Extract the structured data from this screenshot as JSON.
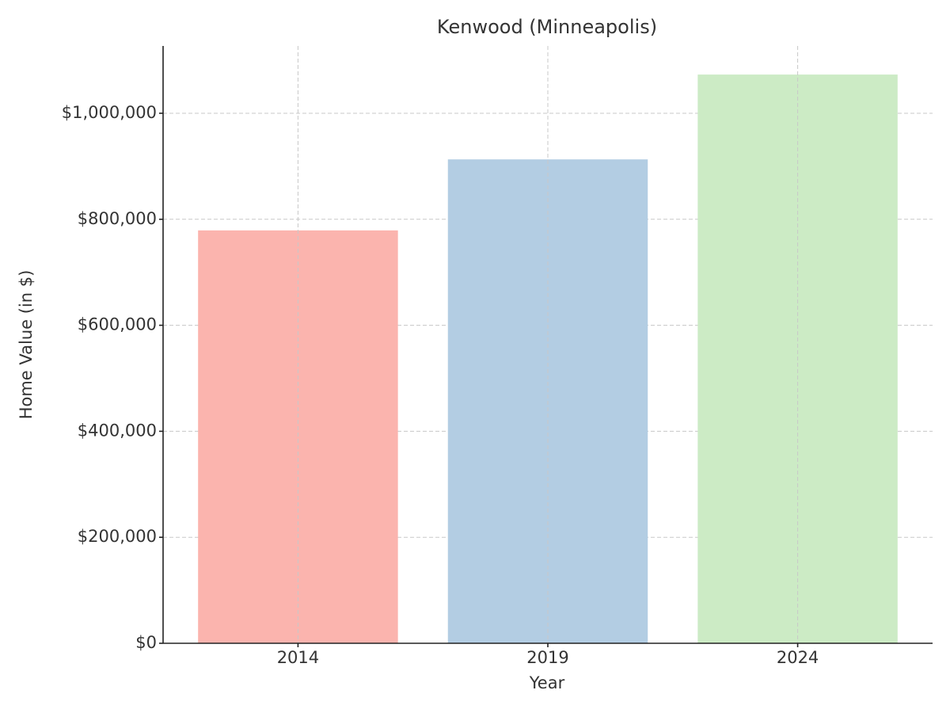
{
  "chart_data": {
    "type": "bar",
    "title": "Kenwood (Minneapolis)",
    "x_label": "Year",
    "y_label": "Home Value (in $)",
    "categories": [
      "2014",
      "2019",
      "2024"
    ],
    "values": [
      779000,
      913000,
      1073000
    ],
    "colors": [
      "#fbb4ae",
      "#b3cde3",
      "#ccebc5"
    ],
    "ylim": [
      0,
      1127000
    ],
    "yticks": [
      {
        "value": 0,
        "label": "$0"
      },
      {
        "value": 200000,
        "label": "$200,000"
      },
      {
        "value": 400000,
        "label": "$400,000"
      },
      {
        "value": 600000,
        "label": "$600,000"
      },
      {
        "value": 800000,
        "label": "$800,000"
      },
      {
        "value": 1000000,
        "label": "$1,000,000"
      }
    ],
    "grid": true
  }
}
